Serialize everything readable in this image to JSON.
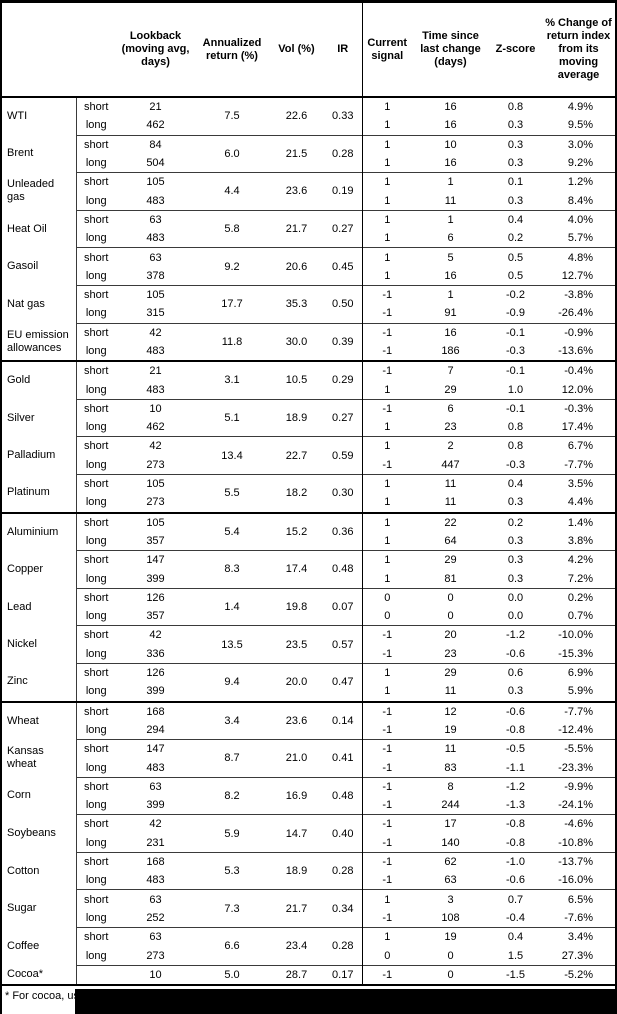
{
  "columns": {
    "lookback": "Lookback (moving avg, days)",
    "annualized": "Annualized return (%)",
    "vol": "Vol (%)",
    "ir": "IR",
    "signal": "Current signal",
    "time": "Time since last change (days)",
    "zscore": "Z-score",
    "pct": "% Change of return index from its moving average"
  },
  "sections": [
    {
      "name": "energy",
      "commodities": [
        {
          "name": "WTI",
          "annualized": "7.5",
          "vol": "22.6",
          "ir": "0.33",
          "rows": [
            {
              "pos": "short",
              "lookback": "21",
              "signal": "1",
              "time": "16",
              "zscore": "0.8",
              "pct": "4.9%"
            },
            {
              "pos": "long",
              "lookback": "462",
              "signal": "1",
              "time": "16",
              "zscore": "0.3",
              "pct": "9.5%"
            }
          ]
        },
        {
          "name": "Brent",
          "annualized": "6.0",
          "vol": "21.5",
          "ir": "0.28",
          "rows": [
            {
              "pos": "short",
              "lookback": "84",
              "signal": "1",
              "time": "10",
              "zscore": "0.3",
              "pct": "3.0%"
            },
            {
              "pos": "long",
              "lookback": "504",
              "signal": "1",
              "time": "16",
              "zscore": "0.3",
              "pct": "9.2%"
            }
          ]
        },
        {
          "name": "Unleaded gas",
          "annualized": "4.4",
          "vol": "23.6",
          "ir": "0.19",
          "rows": [
            {
              "pos": "short",
              "lookback": "105",
              "signal": "1",
              "time": "1",
              "zscore": "0.1",
              "pct": "1.2%"
            },
            {
              "pos": "long",
              "lookback": "483",
              "signal": "1",
              "time": "11",
              "zscore": "0.3",
              "pct": "8.4%"
            }
          ]
        },
        {
          "name": "Heat Oil",
          "annualized": "5.8",
          "vol": "21.7",
          "ir": "0.27",
          "rows": [
            {
              "pos": "short",
              "lookback": "63",
              "signal": "1",
              "time": "1",
              "zscore": "0.4",
              "pct": "4.0%"
            },
            {
              "pos": "long",
              "lookback": "483",
              "signal": "1",
              "time": "6",
              "zscore": "0.2",
              "pct": "5.7%"
            }
          ]
        },
        {
          "name": "Gasoil",
          "annualized": "9.2",
          "vol": "20.6",
          "ir": "0.45",
          "rows": [
            {
              "pos": "short",
              "lookback": "63",
              "signal": "1",
              "time": "5",
              "zscore": "0.5",
              "pct": "4.8%"
            },
            {
              "pos": "long",
              "lookback": "378",
              "signal": "1",
              "time": "16",
              "zscore": "0.5",
              "pct": "12.7%"
            }
          ]
        },
        {
          "name": "Nat gas",
          "annualized": "17.7",
          "vol": "35.3",
          "ir": "0.50",
          "rows": [
            {
              "pos": "short",
              "lookback": "105",
              "signal": "-1",
              "time": "1",
              "zscore": "-0.2",
              "pct": "-3.8%"
            },
            {
              "pos": "long",
              "lookback": "315",
              "signal": "-1",
              "time": "91",
              "zscore": "-0.9",
              "pct": "-26.4%"
            }
          ]
        },
        {
          "name": "EU emission allowances",
          "annualized": "11.8",
          "vol": "30.0",
          "ir": "0.39",
          "rows": [
            {
              "pos": "short",
              "lookback": "42",
              "signal": "-1",
              "time": "16",
              "zscore": "-0.1",
              "pct": "-0.9%"
            },
            {
              "pos": "long",
              "lookback": "483",
              "signal": "-1",
              "time": "186",
              "zscore": "-0.3",
              "pct": "-13.6%"
            }
          ]
        }
      ]
    },
    {
      "name": "precious-metals",
      "commodities": [
        {
          "name": "Gold",
          "annualized": "3.1",
          "vol": "10.5",
          "ir": "0.29",
          "rows": [
            {
              "pos": "short",
              "lookback": "21",
              "signal": "-1",
              "time": "7",
              "zscore": "-0.1",
              "pct": "-0.4%"
            },
            {
              "pos": "long",
              "lookback": "483",
              "signal": "1",
              "time": "29",
              "zscore": "1.0",
              "pct": "12.0%"
            }
          ]
        },
        {
          "name": "Silver",
          "annualized": "5.1",
          "vol": "18.9",
          "ir": "0.27",
          "rows": [
            {
              "pos": "short",
              "lookback": "10",
              "signal": "-1",
              "time": "6",
              "zscore": "-0.1",
              "pct": "-0.3%"
            },
            {
              "pos": "long",
              "lookback": "462",
              "signal": "1",
              "time": "23",
              "zscore": "0.8",
              "pct": "17.4%"
            }
          ]
        },
        {
          "name": "Palladium",
          "annualized": "13.4",
          "vol": "22.7",
          "ir": "0.59",
          "rows": [
            {
              "pos": "short",
              "lookback": "42",
              "signal": "1",
              "time": "2",
              "zscore": "0.8",
              "pct": "6.7%"
            },
            {
              "pos": "long",
              "lookback": "273",
              "signal": "-1",
              "time": "447",
              "zscore": "-0.3",
              "pct": "-7.7%"
            }
          ]
        },
        {
          "name": "Platinum",
          "annualized": "5.5",
          "vol": "18.2",
          "ir": "0.30",
          "rows": [
            {
              "pos": "short",
              "lookback": "105",
              "signal": "1",
              "time": "11",
              "zscore": "0.4",
              "pct": "3.5%"
            },
            {
              "pos": "long",
              "lookback": "273",
              "signal": "1",
              "time": "11",
              "zscore": "0.3",
              "pct": "4.4%"
            }
          ]
        }
      ]
    },
    {
      "name": "base-metals",
      "commodities": [
        {
          "name": "Aluminium",
          "annualized": "5.4",
          "vol": "15.2",
          "ir": "0.36",
          "rows": [
            {
              "pos": "short",
              "lookback": "105",
              "signal": "1",
              "time": "22",
              "zscore": "0.2",
              "pct": "1.4%"
            },
            {
              "pos": "long",
              "lookback": "357",
              "signal": "1",
              "time": "64",
              "zscore": "0.3",
              "pct": "3.8%"
            }
          ]
        },
        {
          "name": "Copper",
          "annualized": "8.3",
          "vol": "17.4",
          "ir": "0.48",
          "rows": [
            {
              "pos": "short",
              "lookback": "147",
              "signal": "1",
              "time": "29",
              "zscore": "0.3",
              "pct": "4.2%"
            },
            {
              "pos": "long",
              "lookback": "399",
              "signal": "1",
              "time": "81",
              "zscore": "0.3",
              "pct": "7.2%"
            }
          ]
        },
        {
          "name": "Lead",
          "annualized": "1.4",
          "vol": "19.8",
          "ir": "0.07",
          "rows": [
            {
              "pos": "short",
              "lookback": "126",
              "signal": "0",
              "time": "0",
              "zscore": "0.0",
              "pct": "0.2%"
            },
            {
              "pos": "long",
              "lookback": "357",
              "signal": "0",
              "time": "0",
              "zscore": "0.0",
              "pct": "0.7%"
            }
          ]
        },
        {
          "name": "Nickel",
          "annualized": "13.5",
          "vol": "23.5",
          "ir": "0.57",
          "rows": [
            {
              "pos": "short",
              "lookback": "42",
              "signal": "-1",
              "time": "20",
              "zscore": "-1.2",
              "pct": "-10.0%"
            },
            {
              "pos": "long",
              "lookback": "336",
              "signal": "-1",
              "time": "23",
              "zscore": "-0.6",
              "pct": "-15.3%"
            }
          ]
        },
        {
          "name": "Zinc",
          "annualized": "9.4",
          "vol": "20.0",
          "ir": "0.47",
          "rows": [
            {
              "pos": "short",
              "lookback": "126",
              "signal": "1",
              "time": "29",
              "zscore": "0.6",
              "pct": "6.9%"
            },
            {
              "pos": "long",
              "lookback": "399",
              "signal": "1",
              "time": "11",
              "zscore": "0.3",
              "pct": "5.9%"
            }
          ]
        }
      ]
    },
    {
      "name": "agriculture",
      "commodities": [
        {
          "name": "Wheat",
          "annualized": "3.4",
          "vol": "23.6",
          "ir": "0.14",
          "rows": [
            {
              "pos": "short",
              "lookback": "168",
              "signal": "-1",
              "time": "12",
              "zscore": "-0.6",
              "pct": "-7.7%"
            },
            {
              "pos": "long",
              "lookback": "294",
              "signal": "-1",
              "time": "19",
              "zscore": "-0.8",
              "pct": "-12.4%"
            }
          ]
        },
        {
          "name": "Kansas wheat",
          "annualized": "8.7",
          "vol": "21.0",
          "ir": "0.41",
          "rows": [
            {
              "pos": "short",
              "lookback": "147",
              "signal": "-1",
              "time": "11",
              "zscore": "-0.5",
              "pct": "-5.5%"
            },
            {
              "pos": "long",
              "lookback": "483",
              "signal": "-1",
              "time": "83",
              "zscore": "-1.1",
              "pct": "-23.3%"
            }
          ]
        },
        {
          "name": "Corn",
          "annualized": "8.2",
          "vol": "16.9",
          "ir": "0.48",
          "rows": [
            {
              "pos": "short",
              "lookback": "63",
              "signal": "-1",
              "time": "8",
              "zscore": "-1.2",
              "pct": "-9.9%"
            },
            {
              "pos": "long",
              "lookback": "399",
              "signal": "-1",
              "time": "244",
              "zscore": "-1.3",
              "pct": "-24.1%"
            }
          ]
        },
        {
          "name": "Soybeans",
          "annualized": "5.9",
          "vol": "14.7",
          "ir": "0.40",
          "rows": [
            {
              "pos": "short",
              "lookback": "42",
              "signal": "-1",
              "time": "17",
              "zscore": "-0.8",
              "pct": "-4.6%"
            },
            {
              "pos": "long",
              "lookback": "231",
              "signal": "-1",
              "time": "140",
              "zscore": "-0.8",
              "pct": "-10.8%"
            }
          ]
        },
        {
          "name": "Cotton",
          "annualized": "5.3",
          "vol": "18.9",
          "ir": "0.28",
          "rows": [
            {
              "pos": "short",
              "lookback": "168",
              "signal": "-1",
              "time": "62",
              "zscore": "-1.0",
              "pct": "-13.7%"
            },
            {
              "pos": "long",
              "lookback": "483",
              "signal": "-1",
              "time": "63",
              "zscore": "-0.6",
              "pct": "-16.0%"
            }
          ]
        },
        {
          "name": "Sugar",
          "annualized": "7.3",
          "vol": "21.7",
          "ir": "0.34",
          "rows": [
            {
              "pos": "short",
              "lookback": "63",
              "signal": "1",
              "time": "3",
              "zscore": "0.7",
              "pct": "6.5%"
            },
            {
              "pos": "long",
              "lookback": "252",
              "signal": "-1",
              "time": "108",
              "zscore": "-0.4",
              "pct": "-7.6%"
            }
          ]
        },
        {
          "name": "Coffee",
          "annualized": "6.6",
          "vol": "23.4",
          "ir": "0.28",
          "rows": [
            {
              "pos": "short",
              "lookback": "63",
              "signal": "1",
              "time": "19",
              "zscore": "0.4",
              "pct": "3.4%"
            },
            {
              "pos": "long",
              "lookback": "273",
              "signal": "0",
              "time": "0",
              "zscore": "1.5",
              "pct": "27.3%"
            }
          ]
        },
        {
          "name": "Cocoa*",
          "annualized": "5.0",
          "vol": "28.7",
          "ir": "0.17",
          "rows": [
            {
              "pos": "",
              "lookback": "10",
              "signal": "-1",
              "time": "0",
              "zscore": "-1.5",
              "pct": "-5.2%"
            }
          ]
        }
      ]
    }
  ],
  "footnote": {
    "text": "* For cocoa, uses",
    "redacted": true
  },
  "colors": {
    "background": "#ffffff",
    "text": "#000000",
    "thick_line": "#000000",
    "thin_line": "#3a3a3a",
    "redaction": "#000000"
  }
}
